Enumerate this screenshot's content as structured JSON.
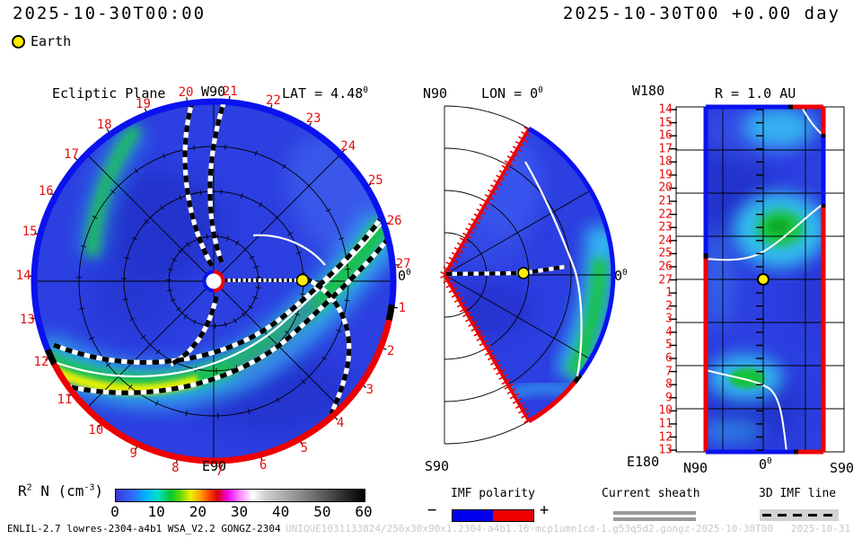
{
  "header": {
    "timestamp_left": "2025-10-30T00:00",
    "timestamp_right": "2025-10-30T00 +0.00 day",
    "earth_label": "Earth"
  },
  "panels": {
    "ecliptic": {
      "title": "Ecliptic Plane",
      "lat_label": "LAT = 4.48",
      "deg": "0",
      "w90": "W90",
      "e90": "E90",
      "zero": "0",
      "dates": [
        "14",
        "15",
        "16",
        "17",
        "18",
        "19",
        "20",
        "21",
        "22",
        "23",
        "24",
        "25",
        "26",
        "27",
        "1",
        "2",
        "3",
        "4",
        "5",
        "6",
        "7",
        "8",
        "9",
        "10",
        "11",
        "12",
        "13"
      ]
    },
    "meridional": {
      "n90": "N90",
      "lon_label": "LON = 0",
      "deg": "0",
      "s90": "S90",
      "zero": "0"
    },
    "radial": {
      "title": "R = 1.0 AU",
      "w180": "W180",
      "e180": "E180",
      "n90": "N90",
      "zero": "0",
      "deg": "0",
      "s90": "S90",
      "dates": [
        "14",
        "15",
        "16",
        "17",
        "18",
        "19",
        "20",
        "21",
        "22",
        "23",
        "24",
        "25",
        "26",
        "27",
        "1",
        "2",
        "3",
        "4",
        "5",
        "6",
        "7",
        "8",
        "9",
        "10",
        "11",
        "12",
        "13"
      ]
    }
  },
  "colorbar": {
    "label_r": "R",
    "label_sup": "2",
    "label_mid": " N (cm",
    "label_sup2": "-3",
    "label_close": ")",
    "ticks": [
      0,
      10,
      20,
      30,
      40,
      50,
      60
    ],
    "range": [
      0,
      60
    ]
  },
  "legends": {
    "imf_label": "IMF polarity",
    "minus": "−",
    "plus": "+",
    "sheath_label": "Current sheath",
    "line_label": "3D IMF line"
  },
  "footer": {
    "model": "ENLIL-2.7 lowres-2304-a4b1 WSA_V2.2 GONGZ-2304",
    "watermark": "UNIQUE1031133824/256x30x90x1.2304-a4b1.16-mcp1umn1cd-1.g53q5d2.gongz-2025-10-30T00   2025-10-31"
  },
  "colors": {
    "field_base": "#2c3fe0",
    "polarity_negative": "#0a12ee",
    "polarity_positive": "#ee0000",
    "earth_fill": "#ffee00",
    "date_label_red": "#e31010",
    "density_green": "#18c23a",
    "density_cyan": "#36c9f2",
    "density_yellow": "#e8f000"
  },
  "chart_data": [
    {
      "type": "heatmap",
      "title": "Ecliptic Plane",
      "projection": "polar disc, Sun at center, r = 0 to ~1.1 AU",
      "quantity": "R^2 N (cm^-3)",
      "range": [
        0,
        60
      ],
      "lat_deg": 4.48,
      "rim_date_labels_clockwise_from_right": [
        "27",
        "1",
        "2",
        "3",
        "4",
        "5",
        "6",
        "7",
        "8",
        "9",
        "10",
        "11",
        "12",
        "13",
        "14",
        "15",
        "16",
        "17",
        "18",
        "19",
        "20",
        "21",
        "22",
        "23",
        "24",
        "25",
        "26"
      ],
      "cardinal_labels": {
        "top": "W90",
        "bottom": "E90",
        "right": "0 deg"
      },
      "earth": {
        "longitude_deg": 0,
        "radius_au": 1.0
      },
      "features": [
        "background slow wind ~5-10 cm^-3 (blue)",
        "bright CIR spiral band reaching ~25-40 cm^-3 (green/yellow) sweeping from east limb through south-west to 0 deg rim",
        "secondary green streak near rim at days 17-18 (upper left)",
        "outer rim IMF polarity: blue (negative) from ~day 1 counterclockwise through W90 to ~day 11, red (positive) across the south",
        "six dashed 3D IMF spiral lines, two white current-sheet spirals",
        "Sun marker at center (white disc, blue/red polarity ring)"
      ]
    },
    {
      "type": "heatmap",
      "title": "Meridional cut at LON = 0",
      "projection": "polar wedge +/-60 deg latitude, apex at Sun",
      "quantity": "R^2 N (cm^-3)",
      "range": [
        0,
        60
      ],
      "pole_labels": [
        "N90",
        "S90"
      ],
      "earth": {
        "latitude_deg": 0,
        "radius_au": 1.0
      },
      "features": [
        "high-density band ~25-35 cm^-3 near 1 AU between +5 and -40 deg latitude",
        "outer boundary blue (negative) from +60 deg down to ~-38 deg, red (positive) below",
        "inner radial boundaries drawn as red hatched lines",
        "white current sheet crossing equator near outer boundary",
        "dashed IMF line along equator through Earth"
      ]
    },
    {
      "type": "heatmap",
      "title": "Sphere map at R = 1.0 AU",
      "x_axis_labels": [
        "N90",
        "0",
        "S90"
      ],
      "y_axis": "date, Oct 14 (top, W180) to Nov 13 (bottom, E180)",
      "quantity": "R^2 N (cm^-3)",
      "range": [
        0,
        60
      ],
      "earth": {
        "x": "0 deg",
        "y_date": "27"
      },
      "features": [
        "green density maxima ~30 cm^-3 near (S20, day 23-25) and (0 to N20, day 7-8)",
        "dark rarefactions ~3-5 cm^-3 upper-left and bottom-center",
        "white current-sheet traces crossing the map",
        "edge polarity stripes: blue negative upper-left / mid-right, red positive elsewhere"
      ]
    },
    {
      "type": "colorbar",
      "label": "R^2 N (cm^-3)",
      "ticks": [
        0,
        10,
        20,
        30,
        40,
        50,
        60
      ],
      "colors": "blue - cyan - green - yellow - orange - red - magenta - white - gray - black"
    }
  ]
}
